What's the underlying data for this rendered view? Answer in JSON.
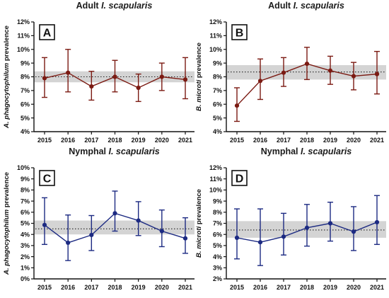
{
  "chart_data": [
    {
      "type": "line",
      "panel_letter": "A",
      "title_prefix": "Adult ",
      "title_italic": "I. scapularis",
      "ylabel_italic": "A. phagocytophilum",
      "ylabel_suffix": " prevalence",
      "ylim": [
        4,
        12
      ],
      "yticks": [
        "4%",
        "5%",
        "6%",
        "7%",
        "8%",
        "9%",
        "10%",
        "11%",
        "12%"
      ],
      "x": [
        "2015",
        "2016",
        "2017",
        "2018",
        "2019",
        "2020",
        "2021"
      ],
      "values": [
        7.9,
        8.3,
        7.3,
        8.0,
        7.2,
        8.0,
        7.8
      ],
      "ci_low": [
        6.5,
        6.9,
        6.3,
        6.9,
        6.2,
        7.0,
        6.4
      ],
      "ci_high": [
        9.4,
        10.0,
        8.4,
        9.2,
        8.2,
        9.0,
        9.4
      ],
      "pooled_mean": 8.0,
      "pooled_band": [
        7.6,
        8.4
      ],
      "color": "#7b1a12"
    },
    {
      "type": "line",
      "panel_letter": "B",
      "title_prefix": "Adult ",
      "title_italic": "I. scapularis",
      "ylabel_italic": "B. microti",
      "ylabel_suffix": " prevalence",
      "ylim": [
        4,
        12
      ],
      "yticks": [
        "4%",
        "5%",
        "6%",
        "7%",
        "8%",
        "9%",
        "10%",
        "11%",
        "12%"
      ],
      "x": [
        "2015",
        "2016",
        "2017",
        "2018",
        "2019",
        "2020",
        "2021"
      ],
      "values": [
        5.9,
        7.7,
        8.3,
        8.95,
        8.45,
        8.05,
        8.2
      ],
      "ci_low": [
        4.75,
        6.35,
        7.3,
        7.8,
        7.45,
        7.05,
        6.75
      ],
      "ci_high": [
        7.2,
        9.3,
        9.4,
        10.15,
        9.5,
        9.05,
        9.85
      ],
      "pooled_mean": 8.35,
      "pooled_band": [
        7.8,
        8.85
      ],
      "color": "#7b1a12"
    },
    {
      "type": "line",
      "panel_letter": "C",
      "title_prefix": "Nymphal ",
      "title_italic": "I. scapularis",
      "ylabel_italic": "A. phagocytophilum",
      "ylabel_suffix": " prevalence",
      "ylim": [
        0,
        10
      ],
      "yticks": [
        "0%",
        "1%",
        "2%",
        "3%",
        "4%",
        "5%",
        "6%",
        "7%",
        "8%",
        "9%",
        "10%"
      ],
      "x": [
        "2015",
        "2016",
        "2017",
        "2018",
        "2019",
        "2020",
        "2021"
      ],
      "values": [
        4.85,
        3.25,
        3.95,
        5.9,
        5.25,
        4.3,
        3.65
      ],
      "ci_low": [
        3.1,
        1.65,
        2.55,
        4.3,
        3.9,
        2.9,
        2.3
      ],
      "ci_high": [
        7.3,
        5.75,
        5.7,
        7.9,
        6.95,
        6.2,
        5.5
      ],
      "pooled_mean": 4.5,
      "pooled_band": [
        4.0,
        5.25
      ],
      "color": "#1c2a82"
    },
    {
      "type": "line",
      "panel_letter": "D",
      "title_prefix": "Nymphal ",
      "title_italic": "I. scapularis",
      "ylabel_italic": "B. microti",
      "ylabel_suffix": " prevalence",
      "ylim": [
        2,
        12
      ],
      "yticks": [
        "2%",
        "3%",
        "4%",
        "5%",
        "6%",
        "7%",
        "8%",
        "9%",
        "10%",
        "11%",
        "12%"
      ],
      "x": [
        "2015",
        "2016",
        "2017",
        "2018",
        "2019",
        "2020",
        "2021"
      ],
      "values": [
        5.7,
        5.3,
        5.8,
        6.6,
        7.0,
        6.25,
        7.1
      ],
      "ci_low": [
        3.8,
        3.2,
        4.15,
        4.95,
        5.4,
        4.55,
        5.1
      ],
      "ci_high": [
        8.3,
        8.3,
        7.9,
        8.7,
        8.9,
        8.5,
        9.5
      ],
      "pooled_mean": 6.4,
      "pooled_band": [
        5.7,
        7.2
      ],
      "color": "#1c2a82"
    }
  ]
}
